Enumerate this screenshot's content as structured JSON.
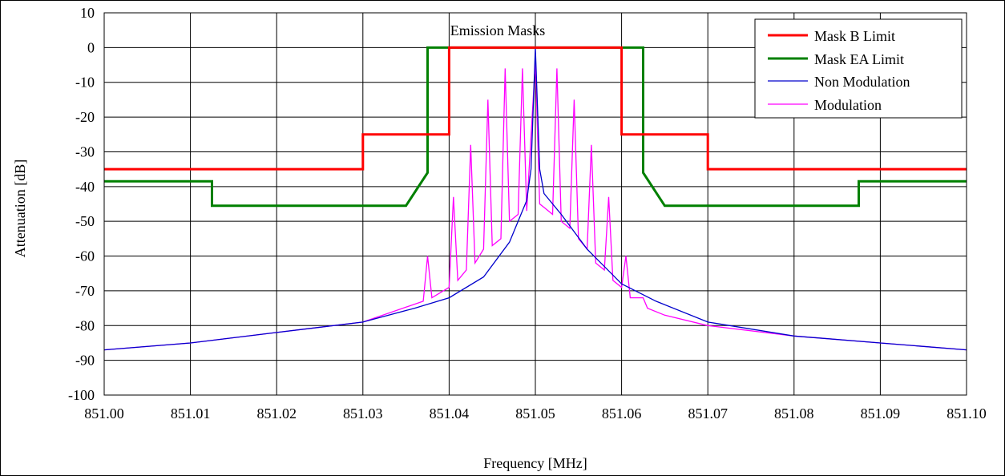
{
  "chart_data": {
    "type": "line",
    "title": "Emission Masks",
    "xlabel": "Frequency [MHz]",
    "ylabel": "Attenuation [dB]",
    "xlim": [
      851.0,
      851.1
    ],
    "ylim": [
      -100,
      10
    ],
    "x_ticks": [
      "851.00",
      "851.01",
      "851.02",
      "851.03",
      "851.04",
      "851.05",
      "851.06",
      "851.07",
      "851.08",
      "851.09",
      "851.10"
    ],
    "y_ticks": [
      "10",
      "0",
      "-10",
      "-20",
      "-30",
      "-40",
      "-50",
      "-60",
      "-70",
      "-80",
      "-90",
      "-100"
    ],
    "grid": true,
    "legend_position": "top-right",
    "series": [
      {
        "name": "Mask B Limit",
        "color": "#ff0000",
        "x": [
          851.0,
          851.03,
          851.03,
          851.04,
          851.04,
          851.06,
          851.06,
          851.07,
          851.07,
          851.1
        ],
        "y": [
          -35,
          -35,
          -25,
          -25,
          0,
          0,
          -25,
          -25,
          -35,
          -35
        ]
      },
      {
        "name": "Mask EA Limit",
        "color": "#008000",
        "x": [
          851.0,
          851.0125,
          851.0125,
          851.035,
          851.0375,
          851.0375,
          851.0625,
          851.0625,
          851.065,
          851.0875,
          851.0875,
          851.1
        ],
        "y": [
          -38.5,
          -38.5,
          -45.5,
          -45.5,
          -36,
          0,
          0,
          -36,
          -45.5,
          -45.5,
          -38.5,
          -38.5
        ]
      },
      {
        "name": "Non Modulation",
        "color": "#0000cc",
        "x": [
          851.0,
          851.01,
          851.02,
          851.03,
          851.036,
          851.04,
          851.044,
          851.047,
          851.049,
          851.0495,
          851.05,
          851.0505,
          851.051,
          851.053,
          851.056,
          851.06,
          851.064,
          851.07,
          851.08,
          851.09,
          851.1
        ],
        "y": [
          -87,
          -85,
          -82,
          -79,
          -75,
          -72,
          -66,
          -56,
          -44,
          -35,
          0,
          -35,
          -42,
          -48,
          -58,
          -68,
          -73,
          -79,
          -83,
          -85,
          -87
        ]
      },
      {
        "name": "Modulation",
        "color": "#ff00ff",
        "x": [
          851.0,
          851.01,
          851.02,
          851.03,
          851.037,
          851.0375,
          851.038,
          851.04,
          851.0405,
          851.041,
          851.042,
          851.0425,
          851.043,
          851.044,
          851.0445,
          851.045,
          851.046,
          851.0465,
          851.047,
          851.048,
          851.0485,
          851.049,
          851.05,
          851.0505,
          851.051,
          851.052,
          851.0525,
          851.053,
          851.054,
          851.0545,
          851.055,
          851.056,
          851.0565,
          851.057,
          851.058,
          851.0585,
          851.059,
          851.06,
          851.0605,
          851.061,
          851.062,
          851.0625,
          851.063,
          851.065,
          851.07,
          851.08,
          851.09,
          851.1
        ],
        "y": [
          -87,
          -85,
          -82,
          -79,
          -73,
          -60,
          -72,
          -69,
          -43,
          -67,
          -64,
          -28,
          -62,
          -58,
          -15,
          -57,
          -55,
          -6,
          -50,
          -48,
          -6,
          -47,
          -4,
          -45,
          -46,
          -48,
          -6,
          -50,
          -52,
          -15,
          -55,
          -58,
          -28,
          -62,
          -64,
          -43,
          -67,
          -69,
          -60,
          -72,
          -72,
          -72,
          -75,
          -77,
          -80,
          -83,
          -85,
          -87
        ]
      }
    ]
  }
}
